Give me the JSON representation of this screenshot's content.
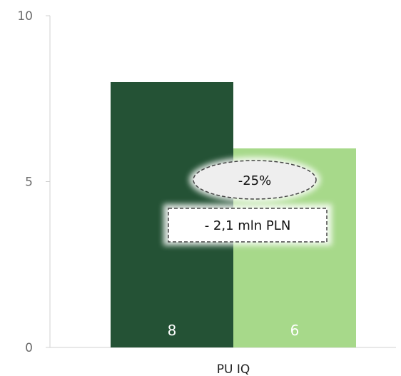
{
  "chart_data": {
    "type": "bar",
    "categories": [
      "PU IQ"
    ],
    "series": [
      {
        "values": [
          8
        ],
        "color": "#245235"
      },
      {
        "values": [
          6
        ],
        "color": "#a7d98a"
      }
    ],
    "data_labels": [
      "8",
      "6"
    ],
    "ylim": [
      0,
      10
    ],
    "yticks": [
      0,
      5,
      10
    ],
    "grid": false,
    "legend": "none",
    "annotations": {
      "percent_change": "-25%",
      "amount_change": "- 2,1 mln PLN"
    }
  }
}
